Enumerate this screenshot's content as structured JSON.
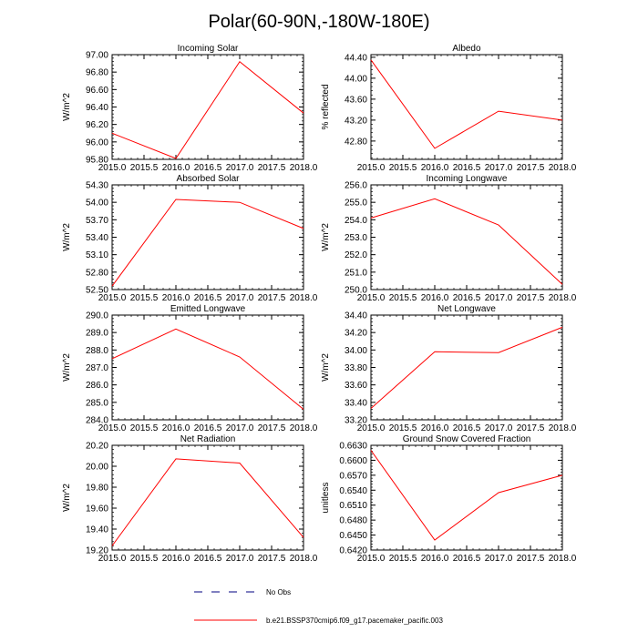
{
  "title": "Polar(60-90N,-180W-180E)",
  "colors": {
    "model": "#ff0000",
    "obs": "#000080",
    "axis": "#000000"
  },
  "legend": {
    "obs_label": "No Obs",
    "model_label": "b.e21.BSSP370cmip6.f09_g17.pacemaker_pacific.003"
  },
  "chart_data": [
    {
      "type": "line",
      "title": "Incoming Solar",
      "ylabel": "W/m^2",
      "x": [
        2015.0,
        2016.0,
        2017.0,
        2018.0
      ],
      "values": [
        96.1,
        95.81,
        96.92,
        96.33
      ],
      "xlim": [
        2015.0,
        2018.0
      ],
      "ylim": [
        95.8,
        97.0
      ],
      "xticks": [
        "2015.0",
        "2015.5",
        "2016.0",
        "2016.5",
        "2017.0",
        "2017.5",
        "2018.0"
      ],
      "yticks": [
        "95.80",
        "96.00",
        "96.20",
        "96.40",
        "96.60",
        "96.80",
        "97.00"
      ]
    },
    {
      "type": "line",
      "title": "Albedo",
      "ylabel": "% reflected",
      "x": [
        2015.0,
        2016.0,
        2017.0,
        2018.0
      ],
      "values": [
        44.35,
        42.66,
        43.37,
        43.2
      ],
      "xlim": [
        2015.0,
        2018.0
      ],
      "ylim": [
        42.45,
        44.45
      ],
      "xticks": [
        "2015.0",
        "2015.5",
        "2016.0",
        "2016.5",
        "2017.0",
        "2017.5",
        "2018.0"
      ],
      "yticks": [
        "42.80",
        "43.20",
        "43.60",
        "44.00",
        "44.40"
      ]
    },
    {
      "type": "line",
      "title": "Absorbed Solar",
      "ylabel": "W/m^2",
      "x": [
        2015.0,
        2016.0,
        2017.0,
        2018.0
      ],
      "values": [
        52.56,
        54.05,
        54.0,
        53.55
      ],
      "xlim": [
        2015.0,
        2018.0
      ],
      "ylim": [
        52.5,
        54.3
      ],
      "xticks": [
        "2015.0",
        "2015.5",
        "2016.0",
        "2016.5",
        "2017.0",
        "2017.5",
        "2018.0"
      ],
      "yticks": [
        "52.50",
        "52.80",
        "53.10",
        "53.40",
        "53.70",
        "54.00",
        "54.30"
      ]
    },
    {
      "type": "line",
      "title": "Incoming Longwave",
      "ylabel": "W/m^2",
      "x": [
        2015.0,
        2016.0,
        2017.0,
        2018.0
      ],
      "values": [
        254.1,
        255.2,
        253.7,
        250.3
      ],
      "xlim": [
        2015.0,
        2018.0
      ],
      "ylim": [
        250.0,
        256.0
      ],
      "xticks": [
        "2015.0",
        "2015.5",
        "2016.0",
        "2016.5",
        "2017.0",
        "2017.5",
        "2018.0"
      ],
      "yticks": [
        "250.0",
        "251.0",
        "252.0",
        "253.0",
        "254.0",
        "255.0",
        "256.0"
      ]
    },
    {
      "type": "line",
      "title": "Emitted Longwave",
      "ylabel": "W/m^2",
      "x": [
        2015.0,
        2016.0,
        2017.0,
        2018.0
      ],
      "values": [
        287.5,
        289.2,
        287.6,
        284.6
      ],
      "xlim": [
        2015.0,
        2018.0
      ],
      "ylim": [
        284.0,
        290.0
      ],
      "xticks": [
        "2015.0",
        "2015.5",
        "2016.0",
        "2016.5",
        "2017.0",
        "2017.5",
        "2018.0"
      ],
      "yticks": [
        "284.0",
        "285.0",
        "286.0",
        "287.0",
        "288.0",
        "289.0",
        "290.0"
      ]
    },
    {
      "type": "line",
      "title": "Net Longwave",
      "ylabel": "W/m^2",
      "x": [
        2015.0,
        2016.0,
        2017.0,
        2018.0
      ],
      "values": [
        33.33,
        33.98,
        33.97,
        34.26
      ],
      "xlim": [
        2015.0,
        2018.0
      ],
      "ylim": [
        33.2,
        34.4
      ],
      "xticks": [
        "2015.0",
        "2015.5",
        "2016.0",
        "2016.5",
        "2017.0",
        "2017.5",
        "2018.0"
      ],
      "yticks": [
        "33.20",
        "33.40",
        "33.60",
        "33.80",
        "34.00",
        "34.20",
        "34.40"
      ]
    },
    {
      "type": "line",
      "title": "Net Radiation",
      "ylabel": "W/m^2",
      "x": [
        2015.0,
        2016.0,
        2017.0,
        2018.0
      ],
      "values": [
        19.24,
        20.07,
        20.03,
        19.32
      ],
      "xlim": [
        2015.0,
        2018.0
      ],
      "ylim": [
        19.2,
        20.2
      ],
      "xticks": [
        "2015.0",
        "2015.5",
        "2016.0",
        "2016.5",
        "2017.0",
        "2017.5",
        "2018.0"
      ],
      "yticks": [
        "19.20",
        "19.40",
        "19.60",
        "19.80",
        "20.00",
        "20.20"
      ]
    },
    {
      "type": "line",
      "title": "Ground Snow Covered Fraction",
      "ylabel": "unitless",
      "x": [
        2015.0,
        2016.0,
        2017.0,
        2018.0
      ],
      "values": [
        0.662,
        0.644,
        0.6535,
        0.657
      ],
      "xlim": [
        2015.0,
        2018.0
      ],
      "ylim": [
        0.642,
        0.663
      ],
      "xticks": [
        "2015.0",
        "2015.5",
        "2016.0",
        "2016.5",
        "2017.0",
        "2017.5",
        "2018.0"
      ],
      "yticks": [
        "0.6420",
        "0.6450",
        "0.6480",
        "0.6510",
        "0.6540",
        "0.6570",
        "0.6600",
        "0.6630"
      ]
    }
  ]
}
